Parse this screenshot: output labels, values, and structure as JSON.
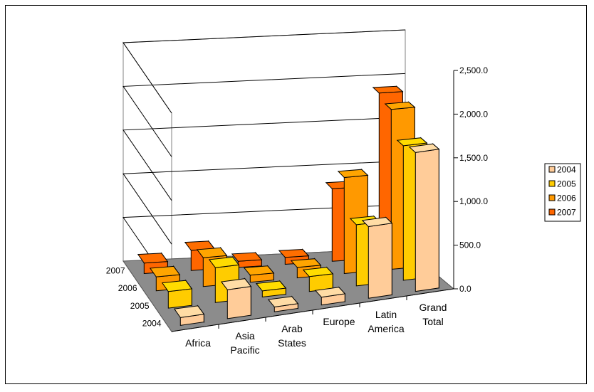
{
  "chart_data": {
    "type": "bar",
    "variant": "3d-column",
    "categories": [
      "Africa",
      "Asia\nPacific",
      "Arab\nStates",
      "Europe",
      "Latin\nAmerica",
      "Grand\nTotal"
    ],
    "series": [
      {
        "name": "2004",
        "color": "#FFCC99",
        "values": [
          90,
          330,
          55,
          90,
          820,
          1590
        ]
      },
      {
        "name": "2005",
        "color": "#FFCC00",
        "values": [
          190,
          400,
          70,
          170,
          700,
          1540
        ]
      },
      {
        "name": "2006",
        "color": "#FF9900",
        "values": [
          160,
          330,
          80,
          120,
          1100,
          1830
        ]
      },
      {
        "name": "2007",
        "color": "#FF6600",
        "values": [
          120,
          230,
          70,
          80,
          830,
          1890
        ]
      }
    ],
    "ylim": [
      0,
      2500
    ],
    "yticks": [
      "0.0",
      "500.0",
      "1,000.0",
      "1,500.0",
      "2,000.0",
      "2,500.0"
    ],
    "depth_labels": [
      "2007",
      "2006",
      "2005",
      "2004"
    ],
    "legend_position": "right",
    "grid": true
  }
}
